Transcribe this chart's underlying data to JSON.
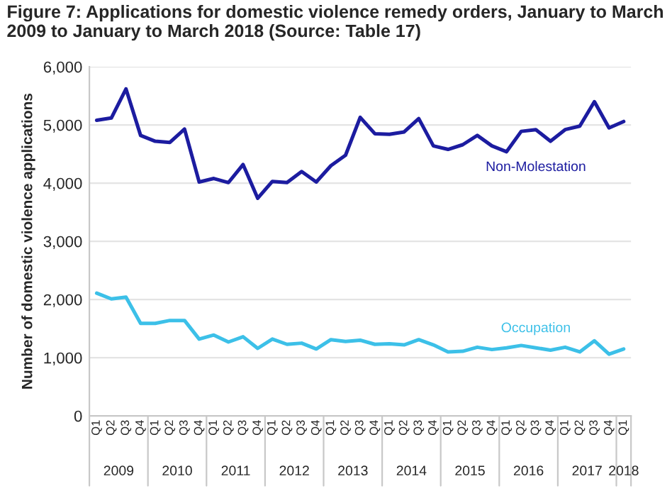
{
  "chart_data": {
    "type": "line",
    "title": "Figure 7: Applications for domestic violence remedy orders, January to March 2009 to January to March 2018 (Source: Table 17)",
    "ylabel": "Number of domestic violence applications",
    "categories": [
      "Q1",
      "Q2",
      "Q3",
      "Q4",
      "Q1",
      "Q2",
      "Q3",
      "Q4",
      "Q1",
      "Q2",
      "Q3",
      "Q4",
      "Q1",
      "Q2",
      "Q3",
      "Q4",
      "Q1",
      "Q2",
      "Q3",
      "Q4",
      "Q1",
      "Q2",
      "Q3",
      "Q4",
      "Q1",
      "Q2",
      "Q3",
      "Q4",
      "Q1",
      "Q2",
      "Q3",
      "Q4",
      "Q1",
      "Q2",
      "Q3",
      "Q4",
      "Q1"
    ],
    "annotations": [
      "2009",
      "2010",
      "2011",
      "2012",
      "2013",
      "2014",
      "2015",
      "2016",
      "2017",
      "2018"
    ],
    "series": [
      {
        "name": "Non-Molestation",
        "color": "#1c1ca0",
        "values": [
          5080,
          5120,
          5620,
          4820,
          4720,
          4700,
          4930,
          4020,
          4080,
          4010,
          4320,
          3740,
          4030,
          4010,
          4200,
          4020,
          4300,
          4480,
          5130,
          4850,
          4840,
          4880,
          5110,
          4640,
          4580,
          4660,
          4820,
          4640,
          4540,
          4890,
          4920,
          4720,
          4920,
          4980,
          5400,
          4950,
          5060
        ]
      },
      {
        "name": "Occupation",
        "color": "#3cc0e8",
        "values": [
          2110,
          2010,
          2040,
          1590,
          1590,
          1640,
          1640,
          1320,
          1390,
          1270,
          1360,
          1160,
          1320,
          1230,
          1250,
          1150,
          1310,
          1280,
          1300,
          1230,
          1240,
          1220,
          1310,
          1220,
          1100,
          1110,
          1180,
          1140,
          1170,
          1210,
          1170,
          1130,
          1180,
          1100,
          1290,
          1060,
          1150
        ]
      }
    ],
    "ylim": [
      0,
      6000
    ],
    "yticks": [
      0,
      {
        "value": 1000,
        "label": "1,000"
      },
      {
        "value": 2000,
        "label": "2,000"
      },
      {
        "value": 3000,
        "label": "3,000"
      },
      {
        "value": 4000,
        "label": "4,000"
      },
      {
        "value": 5000,
        "label": "5,000"
      },
      {
        "value": 6000,
        "label": "6,000"
      }
    ],
    "grid": "y",
    "legend": false,
    "marker": "none",
    "line_style": "solid"
  }
}
